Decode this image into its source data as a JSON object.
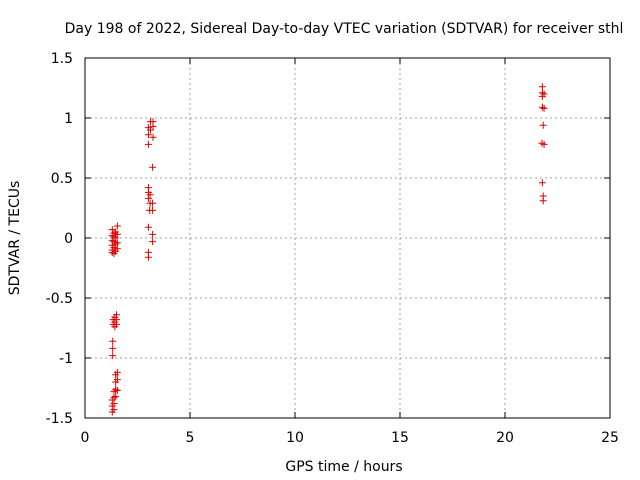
{
  "chart_data": {
    "type": "scatter",
    "title": "Day 198 of 2022, Sidereal Day-to-day VTEC variation (SDTVAR) for receiver sthl",
    "xlabel": "GPS time / hours",
    "ylabel": "SDTVAR / TECUs",
    "xlim": [
      0,
      25
    ],
    "ylim": [
      -1.5,
      1.5
    ],
    "x_ticks": [
      0,
      5,
      10,
      15,
      20,
      25
    ],
    "y_ticks": [
      -1.5,
      -1,
      -0.5,
      0,
      0.5,
      1,
      1.5
    ],
    "x_tick_labels": [
      "0",
      "5",
      "10",
      "15",
      "20",
      "25"
    ],
    "y_tick_labels": [
      "-1.5",
      "-1",
      "-0.5",
      "0",
      "0.5",
      "1",
      "1.5"
    ],
    "grid": true,
    "legend": "none",
    "marker": "plus",
    "marker_color": "#dd0000",
    "series": [
      {
        "name": "sthl",
        "points": [
          [
            1.3,
            0.07
          ],
          [
            1.3,
            0.02
          ],
          [
            1.3,
            -0.02
          ],
          [
            1.3,
            -0.06
          ],
          [
            1.3,
            -0.1
          ],
          [
            1.3,
            -0.12
          ],
          [
            1.38,
            0.04
          ],
          [
            1.38,
            0.01
          ],
          [
            1.38,
            -0.03
          ],
          [
            1.38,
            -0.08
          ],
          [
            1.38,
            -0.13
          ],
          [
            1.46,
            0.05
          ],
          [
            1.46,
            0.0
          ],
          [
            1.46,
            -0.05
          ],
          [
            1.46,
            -0.11
          ],
          [
            1.54,
            0.1
          ],
          [
            1.54,
            0.03
          ],
          [
            1.54,
            -0.04
          ],
          [
            1.54,
            -0.09
          ],
          [
            1.34,
            -0.68
          ],
          [
            1.34,
            -0.72
          ],
          [
            1.42,
            -0.66
          ],
          [
            1.42,
            -0.7
          ],
          [
            1.42,
            -0.74
          ],
          [
            1.5,
            -0.64
          ],
          [
            1.5,
            -0.68
          ],
          [
            1.5,
            -0.72
          ],
          [
            1.32,
            -0.86
          ],
          [
            1.32,
            -0.92
          ],
          [
            1.32,
            -0.98
          ],
          [
            1.3,
            -1.35
          ],
          [
            1.3,
            -1.4
          ],
          [
            1.3,
            -1.45
          ],
          [
            1.38,
            -1.28
          ],
          [
            1.38,
            -1.33
          ],
          [
            1.38,
            -1.38
          ],
          [
            1.38,
            -1.43
          ],
          [
            1.46,
            -1.14
          ],
          [
            1.46,
            -1.2
          ],
          [
            1.46,
            -1.26
          ],
          [
            1.46,
            -1.32
          ],
          [
            1.54,
            -1.12
          ],
          [
            1.54,
            -1.18
          ],
          [
            1.54,
            -1.27
          ],
          [
            3.02,
            0.92
          ],
          [
            3.02,
            0.86
          ],
          [
            3.02,
            0.78
          ],
          [
            3.12,
            0.97
          ],
          [
            3.12,
            0.9
          ],
          [
            3.24,
            0.97
          ],
          [
            3.24,
            0.93
          ],
          [
            3.24,
            0.84
          ],
          [
            3.22,
            0.59
          ],
          [
            3.02,
            0.42
          ],
          [
            3.02,
            0.38
          ],
          [
            3.02,
            0.33
          ],
          [
            3.1,
            0.36
          ],
          [
            3.1,
            0.29
          ],
          [
            3.08,
            0.23
          ],
          [
            3.22,
            0.29
          ],
          [
            3.22,
            0.23
          ],
          [
            3.02,
            0.09
          ],
          [
            3.02,
            -0.12
          ],
          [
            3.02,
            -0.16
          ],
          [
            3.22,
            0.03
          ],
          [
            3.22,
            -0.03
          ],
          [
            21.78,
            1.26
          ],
          [
            21.78,
            1.21
          ],
          [
            21.78,
            1.18
          ],
          [
            21.78,
            1.09
          ],
          [
            21.86,
            1.2
          ],
          [
            21.86,
            1.08
          ],
          [
            21.82,
            0.94
          ],
          [
            21.76,
            0.79
          ],
          [
            21.86,
            0.78
          ],
          [
            21.78,
            0.46
          ],
          [
            21.82,
            0.35
          ],
          [
            21.82,
            0.31
          ]
        ]
      }
    ]
  }
}
